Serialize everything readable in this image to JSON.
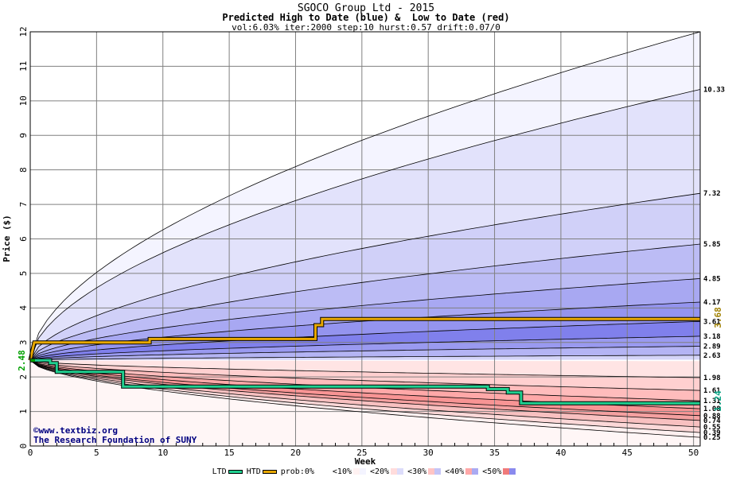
{
  "header": {
    "title": "SGOCO Group Ltd - 2015",
    "subtitle": "Predicted High to Date (blue) &  Low to Date (red)",
    "params": "vol:6.03% iter:2000 step:10 hurst:0.57 drift:0.07/0"
  },
  "watermark": {
    "line1": "©www.textbiz.org",
    "line2": "The Research Foundation of SUNY"
  },
  "values": {
    "start": "2.48",
    "last_high": "3.68",
    "last_low": "1.24"
  },
  "legend": {
    "ltd": "LTD",
    "htd": "HTD",
    "prob": "prob:0%",
    "bands": [
      "<10%",
      "<20%",
      "<30%",
      "<40%",
      "<50%"
    ],
    "band_colors": [
      "#f4f4ff",
      "#dcdcfa",
      "#c4c4f6",
      "#aaaaf2",
      "#8a8aee"
    ],
    "band_colors_red": [
      "#fff2f2",
      "#ffdcdc",
      "#ffc4c4",
      "#ffa8a8",
      "#f07a7a"
    ]
  },
  "colors": {
    "htd_line": "#e8a800",
    "ltd_line": "#20d090",
    "grid": "#808080",
    "start_marker": "#00a000"
  },
  "chart_data": {
    "type": "area",
    "xlabel": "Week",
    "ylabel": "Price ($)",
    "xlim": [
      0,
      50.5
    ],
    "ylim": [
      0,
      12
    ],
    "xticks": [
      0,
      5,
      10,
      15,
      20,
      25,
      30,
      35,
      40,
      45,
      50
    ],
    "yticks": [
      0,
      1,
      2,
      3,
      4,
      5,
      6,
      7,
      8,
      9,
      10,
      11,
      12
    ],
    "start_price": 2.48,
    "high_percentile_endpoints": [
      12.0,
      10.33,
      7.32,
      5.85,
      4.85,
      4.17,
      3.61,
      3.18,
      2.89,
      2.63
    ],
    "low_percentile_endpoints": [
      1.98,
      1.61,
      1.31,
      1.08,
      0.88,
      0.74,
      0.55,
      0.39,
      0.25
    ],
    "end_labels": [
      "10.33",
      "7.32",
      "5.85",
      "4.85",
      "4.17",
      "3.61",
      "3.18",
      "2.89",
      "2.63",
      "1.98",
      "1.61",
      "1.31",
      "1.08",
      "0.88",
      "0.74",
      "0.55",
      "0.39",
      "0.25"
    ],
    "series": [
      {
        "name": "HTD",
        "x": [
          0,
          0.3,
          9,
          9,
          21.5,
          21.5,
          22,
          22,
          50.5
        ],
        "y": [
          2.48,
          3.0,
          3.0,
          3.1,
          3.1,
          3.5,
          3.5,
          3.68,
          3.68
        ]
      },
      {
        "name": "LTD",
        "x": [
          0,
          1.5,
          1.5,
          2,
          2,
          7,
          7,
          34.5,
          34.5,
          36,
          36,
          37,
          37,
          50.5
        ],
        "y": [
          2.48,
          2.48,
          2.4,
          2.4,
          2.15,
          2.15,
          1.72,
          1.72,
          1.65,
          1.65,
          1.55,
          1.55,
          1.24,
          1.24
        ]
      }
    ]
  }
}
